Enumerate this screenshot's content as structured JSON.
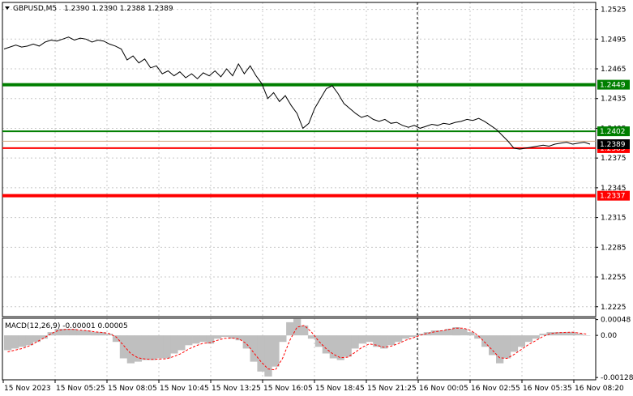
{
  "header": {
    "symbol_label": "GBPUSD,M5",
    "ohlc_label": "1.2390 1.2390 1.2388 1.2389"
  },
  "macd_header": {
    "label": "MACD(12,26,9) -0.00001 0.00005"
  },
  "colors": {
    "price_line": "#000000",
    "grid": "#c8c8c8",
    "green_level": "#007f00",
    "red_level": "#ff0000",
    "macd_hist": "#bfbfbf",
    "signal": "#ff0000",
    "last_price_bg": "#000000",
    "tan_level": "#d2a680"
  },
  "chart_data": [
    {
      "type": "line",
      "title": "GBPUSD,M5",
      "ylim": [
        1.2215,
        1.2532
      ],
      "y_ticks": [
        "1.2525",
        "1.2495",
        "1.2465",
        "1.2435",
        "1.2405",
        "1.2375",
        "1.2345",
        "1.2315",
        "1.2285",
        "1.2255",
        "1.2225"
      ],
      "x_ticks": [
        "15 Nov 2023",
        "15 Nov 05:25",
        "15 Nov 08:05",
        "15 Nov 10:45",
        "15 Nov 13:25",
        "15 Nov 16:05",
        "15 Nov 18:45",
        "15 Nov 21:25",
        "16 Nov 00:05",
        "16 Nov 02:55",
        "16 Nov 05:35",
        "16 Nov 08:20"
      ],
      "grid": true,
      "series": [
        {
          "values": [
            1.2485,
            1.2487,
            1.2489,
            1.2487,
            1.2488,
            1.249,
            1.2488,
            1.2492,
            1.2494,
            1.2493,
            1.2495,
            1.2497,
            1.2494,
            1.2496,
            1.2495,
            1.2492,
            1.2494,
            1.2493,
            1.249,
            1.2488,
            1.2485,
            1.2474,
            1.2478,
            1.2471,
            1.2475,
            1.2466,
            1.2468,
            1.246,
            1.2463,
            1.2458,
            1.2462,
            1.2456,
            1.246,
            1.2455,
            1.2461,
            1.2458,
            1.2463,
            1.2457,
            1.2465,
            1.2458,
            1.247,
            1.246,
            1.2468,
            1.2458,
            1.245,
            1.2435,
            1.2441,
            1.2432,
            1.2438,
            1.2428,
            1.242,
            1.2405,
            1.241,
            1.2425,
            1.2435,
            1.2445,
            1.2448,
            1.244,
            1.243,
            1.2425,
            1.242,
            1.2416,
            1.2418,
            1.2414,
            1.2412,
            1.2414,
            1.241,
            1.2411,
            1.2408,
            1.2406,
            1.2408,
            1.2405,
            1.2407,
            1.2409,
            1.2408,
            1.241,
            1.2409,
            1.2411,
            1.2412,
            1.2414,
            1.2413,
            1.2415,
            1.2412,
            1.2408,
            1.2404,
            1.2398,
            1.2392,
            1.2385,
            1.2384,
            1.2385,
            1.2386,
            1.2387,
            1.2388,
            1.2387,
            1.2389,
            1.239,
            1.2391,
            1.2389,
            1.239,
            1.2391,
            1.2389
          ]
        }
      ],
      "horizontal_levels": [
        {
          "value": 1.2449,
          "label": "1.2449",
          "color": "green",
          "thick": true
        },
        {
          "value": 1.2402,
          "label": "1.2402",
          "color": "green",
          "thick": false
        },
        {
          "value": 1.2385,
          "label": "1.2385",
          "color": "red",
          "thick": false
        },
        {
          "value": 1.2337,
          "label": "1.2337",
          "color": "red",
          "thick": true
        }
      ],
      "last_price": {
        "value": 1.2389,
        "label": "1.2389"
      },
      "tan_level": {
        "value": 1.2392
      },
      "session_separators": [
        "16 Nov 00:05"
      ]
    },
    {
      "type": "bar",
      "title": "MACD(12,26,9)",
      "ylim": [
        -0.00135,
        0.00052
      ],
      "y_ticks": [
        "0.00048",
        "0.00",
        "-0.00128"
      ],
      "series": [
        {
          "name": "MACD",
          "values": [
            -0.00045,
            -0.0004,
            -0.00035,
            -0.0003,
            -0.0002,
            -0.0001,
            0.0001,
            0.0002,
            0.0002,
            0.0002,
            0.00015,
            0.00015,
            0.0001,
            0.0001,
            5e-05,
            -0.0002,
            -0.0007,
            -0.00085,
            -0.0008,
            -0.00075,
            -0.00075,
            -0.0007,
            -0.0007,
            -0.00055,
            -0.00045,
            -0.0003,
            -0.00025,
            -0.0002,
            -0.00025,
            -0.0001,
            -5e-05,
            -0.0001,
            -0.00015,
            -0.0004,
            -0.0008,
            -0.0011,
            -0.00125,
            -0.00095,
            -0.0002,
            0.0004,
            0.0005,
            0.0003,
            -0.0001,
            -0.00035,
            -0.00055,
            -0.0007,
            -0.00075,
            -0.00065,
            -0.0004,
            -0.00025,
            -0.0002,
            -0.00035,
            -0.0004,
            -0.0003,
            -0.0002,
            -0.0001,
            -5e-05,
            5e-05,
            0.0001,
            0.00015,
            0.00015,
            0.0002,
            0.00025,
            0.0002,
            0.0001,
            -0.0001,
            -0.00035,
            -0.0006,
            -0.00085,
            -0.0007,
            -0.0005,
            -0.00035,
            -0.0002,
            -0.0001,
            5e-05,
            0.0001,
            0.0001,
            0.0001,
            0.0001,
            5e-05,
            0.0
          ]
        },
        {
          "name": "Signal",
          "values": [
            -0.0005,
            -0.00045,
            -0.0004,
            -0.00032,
            -0.0002,
            -8e-05,
            5e-05,
            0.00015,
            0.00018,
            0.00018,
            0.00016,
            0.00014,
            0.00011,
            9e-05,
            6e-05,
            -5e-05,
            -0.0003,
            -0.00055,
            -0.00068,
            -0.00072,
            -0.00073,
            -0.00072,
            -0.00071,
            -0.00064,
            -0.00055,
            -0.00042,
            -0.00032,
            -0.00024,
            -0.00022,
            -0.00015,
            -9e-05,
            -8e-05,
            -0.00011,
            -0.00025,
            -0.00052,
            -0.0008,
            -0.00102,
            -0.00105,
            -0.0007,
            -0.00015,
            0.00025,
            0.0003,
            0.0001,
            -0.00018,
            -0.0004,
            -0.00057,
            -0.00068,
            -0.00066,
            -0.00052,
            -0.00036,
            -0.00026,
            -0.0003,
            -0.00036,
            -0.00033,
            -0.00025,
            -0.00015,
            -8e-05,
            0.0,
            6e-05,
            0.00011,
            0.00014,
            0.00018,
            0.00022,
            0.00022,
            0.00015,
            0.0,
            -0.00022,
            -0.00045,
            -0.00068,
            -0.0007,
            -0.00058,
            -0.00043,
            -0.00028,
            -0.00016,
            -3e-05,
            5e-05,
            8e-05,
            9e-05,
            0.0001,
            7e-05,
            4e-05
          ]
        }
      ]
    }
  ]
}
